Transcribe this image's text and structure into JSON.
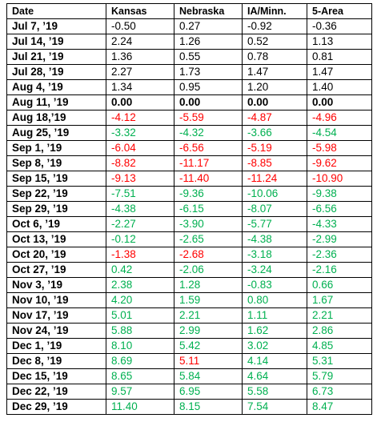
{
  "colors": {
    "black": "#000000",
    "red": "#ff0000",
    "green": "#00b050"
  },
  "headers": [
    "Date",
    "Kansas",
    "Nebraska",
    "IA/Minn.",
    "5-Area"
  ],
  "rows": [
    {
      "date": "Jul 7, ’19",
      "values": [
        "-0.50",
        "0.27",
        "-0.92",
        "-0.36"
      ],
      "colors": [
        "k",
        "k",
        "k",
        "k"
      ]
    },
    {
      "date": "Jul 14, ’19",
      "values": [
        "2.24",
        "1.26",
        "0.52",
        "1.13"
      ],
      "colors": [
        "k",
        "k",
        "k",
        "k"
      ]
    },
    {
      "date": "Jul 21, ’19",
      "values": [
        "1.36",
        "0.55",
        "0.78",
        "0.81"
      ],
      "colors": [
        "k",
        "k",
        "k",
        "k"
      ]
    },
    {
      "date": "Jul 28, ’19",
      "values": [
        "2.27",
        "1.73",
        "1.47",
        "1.47"
      ],
      "colors": [
        "k",
        "k",
        "k",
        "k"
      ]
    },
    {
      "date": "Aug 4, ’19",
      "values": [
        "1.34",
        "0.95",
        "1.20",
        "1.40"
      ],
      "colors": [
        "k",
        "k",
        "k",
        "k"
      ]
    },
    {
      "date": "Aug 11, ’19",
      "values": [
        "0.00",
        "0.00",
        "0.00",
        "0.00"
      ],
      "colors": [
        "k",
        "k",
        "k",
        "k"
      ],
      "bold": true
    },
    {
      "date": "Aug 18,’19",
      "values": [
        "-4.12",
        "-5.59",
        "-4.87",
        "-4.96"
      ],
      "colors": [
        "r",
        "r",
        "r",
        "r"
      ]
    },
    {
      "date": "Aug 25, ’19",
      "values": [
        "-3.32",
        "-4.32",
        "-3.66",
        "-4.54"
      ],
      "colors": [
        "g",
        "g",
        "g",
        "g"
      ]
    },
    {
      "date": "Sep 1, ’19",
      "values": [
        "-6.04",
        "-6.56",
        "-5.19",
        "-5.98"
      ],
      "colors": [
        "r",
        "r",
        "r",
        "r"
      ]
    },
    {
      "date": "Sep 8, ’19",
      "values": [
        "-8.82",
        "-11.17",
        "-8.85",
        "-9.62"
      ],
      "colors": [
        "r",
        "r",
        "r",
        "r"
      ]
    },
    {
      "date": "Sep 15, ’19",
      "values": [
        "-9.13",
        "-11.40",
        "-11.24",
        "-10.90"
      ],
      "colors": [
        "r",
        "r",
        "r",
        "r"
      ]
    },
    {
      "date": "Sep 22, ’19",
      "values": [
        "-7.51",
        "-9.36",
        "-10.06",
        "-9.38"
      ],
      "colors": [
        "g",
        "g",
        "g",
        "g"
      ]
    },
    {
      "date": "Sep 29, ’19",
      "values": [
        "-4.38",
        "-6.15",
        "-8.07",
        "-6.56"
      ],
      "colors": [
        "g",
        "g",
        "g",
        "g"
      ]
    },
    {
      "date": "Oct 6, ’19",
      "values": [
        "-2.27",
        "-3.90",
        "-5.77",
        "-4.33"
      ],
      "colors": [
        "g",
        "g",
        "g",
        "g"
      ]
    },
    {
      "date": "Oct 13, ’19",
      "values": [
        "-0.12",
        "-2.65",
        "-4.38",
        "-2.99"
      ],
      "colors": [
        "g",
        "g",
        "g",
        "g"
      ]
    },
    {
      "date": "Oct 20, ’19",
      "values": [
        "-1.38",
        "-2.68",
        "-3.18",
        "-2.36"
      ],
      "colors": [
        "r",
        "r",
        "g",
        "g"
      ]
    },
    {
      "date": "Oct 27, ’19",
      "values": [
        "0.42",
        "-2.06",
        "-3.24",
        "-2.16"
      ],
      "colors": [
        "g",
        "g",
        "g",
        "g"
      ]
    },
    {
      "date": "Nov 3, ’19",
      "values": [
        "2.38",
        "1.28",
        "-0.83",
        "0.66"
      ],
      "colors": [
        "g",
        "g",
        "g",
        "g"
      ]
    },
    {
      "date": "Nov 10, ’19",
      "values": [
        "4.20",
        "1.59",
        "0.80",
        "1.67"
      ],
      "colors": [
        "g",
        "g",
        "g",
        "g"
      ]
    },
    {
      "date": "Nov 17, ’19",
      "values": [
        "5.01",
        "2.21",
        "1.11",
        "2.21"
      ],
      "colors": [
        "g",
        "g",
        "g",
        "g"
      ]
    },
    {
      "date": "Nov 24, ’19",
      "values": [
        "5.88",
        "2.99",
        "1.62",
        "2.86"
      ],
      "colors": [
        "g",
        "g",
        "g",
        "g"
      ]
    },
    {
      "date": "Dec 1, ’19",
      "values": [
        "8.10",
        "5.42",
        "3.02",
        "4.85"
      ],
      "colors": [
        "g",
        "g",
        "g",
        "g"
      ]
    },
    {
      "date": "Dec 8, ’19",
      "values": [
        "8.69",
        "5.11",
        "4.14",
        "5.31"
      ],
      "colors": [
        "g",
        "r",
        "g",
        "g"
      ]
    },
    {
      "date": "Dec 15, ’19",
      "values": [
        "8.65",
        "5.84",
        "4.64",
        "5.79"
      ],
      "colors": [
        "g",
        "g",
        "g",
        "g"
      ]
    },
    {
      "date": "Dec 22, ’19",
      "values": [
        "9.57",
        "6.95",
        "5.58",
        "6.73"
      ],
      "colors": [
        "g",
        "g",
        "g",
        "g"
      ]
    },
    {
      "date": "Dec 29, ’19",
      "values": [
        "11.40",
        "8.15",
        "7.54",
        "8.47"
      ],
      "colors": [
        "g",
        "g",
        "g",
        "g"
      ]
    }
  ]
}
